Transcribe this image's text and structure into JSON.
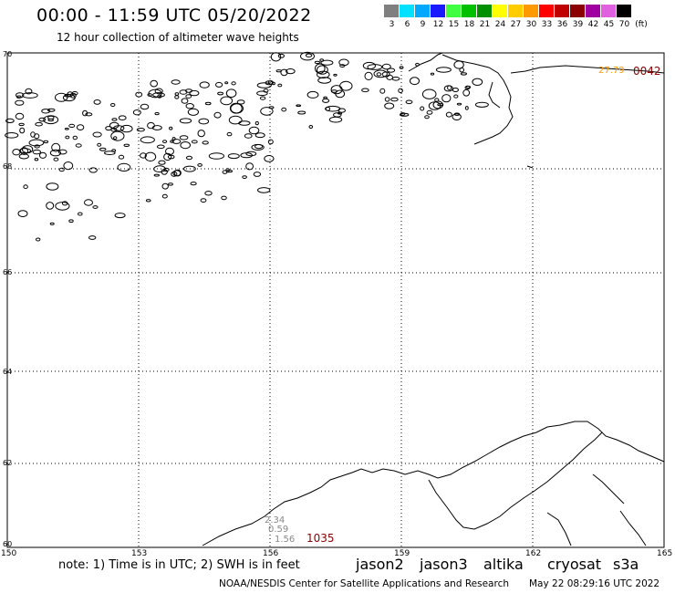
{
  "header": {
    "title": "00:00 - 11:59 UTC 05/20/2022",
    "subtitle": "12 hour collection of altimeter wave heights"
  },
  "legend": {
    "unit": "(ft)",
    "bins": [
      {
        "label": "3",
        "color": "#7f7f7f"
      },
      {
        "label": "6",
        "color": "#00e0ff"
      },
      {
        "label": "9",
        "color": "#00a8ff"
      },
      {
        "label": "12",
        "color": "#1a1aff"
      },
      {
        "label": "15",
        "color": "#40ff40"
      },
      {
        "label": "18",
        "color": "#00c000"
      },
      {
        "label": "21",
        "color": "#009000"
      },
      {
        "label": "24",
        "color": "#ffff00"
      },
      {
        "label": "27",
        "color": "#ffcc00"
      },
      {
        "label": "30",
        "color": "#ff9900"
      },
      {
        "label": "33",
        "color": "#ff0000"
      },
      {
        "label": "36",
        "color": "#c00000"
      },
      {
        "label": "39",
        "color": "#8b0000"
      },
      {
        "label": "42",
        "color": "#a000a0"
      },
      {
        "label": "45",
        "color": "#e060e0"
      },
      {
        "label": "70",
        "color": "#000000"
      }
    ]
  },
  "map": {
    "latitudes": [
      "70",
      "68",
      "66",
      "64",
      "62",
      "60"
    ],
    "longitudes": [
      "150",
      "153",
      "156",
      "159",
      "162",
      "165"
    ],
    "labels": {
      "track_top_value": "27.79",
      "track_top_id": "0042",
      "track_bottom_id": "1035",
      "bottom_values": [
        "2.34",
        "0.59",
        "1.56"
      ]
    },
    "colors": {
      "gray_label": "#888888",
      "orange_label": "#ff9900",
      "darkred_label": "#8b0000"
    }
  },
  "footer": {
    "note": "note: 1) Time is in UTC; 2) SWH is in feet",
    "satellites": [
      {
        "name": "jason2",
        "color": "#1a1aff"
      },
      {
        "name": "jason3",
        "color": "#00a000"
      },
      {
        "name": "altika",
        "color": "#ff9900"
      },
      {
        "name": "cryosat",
        "color": "#ff0000"
      },
      {
        "name": "s3a",
        "color": "#c00000"
      }
    ],
    "credit": "NOAA/NESDIS Center for Satellite Applications and Research",
    "timestamp": "May 22 08:29:16 UTC 2022"
  }
}
